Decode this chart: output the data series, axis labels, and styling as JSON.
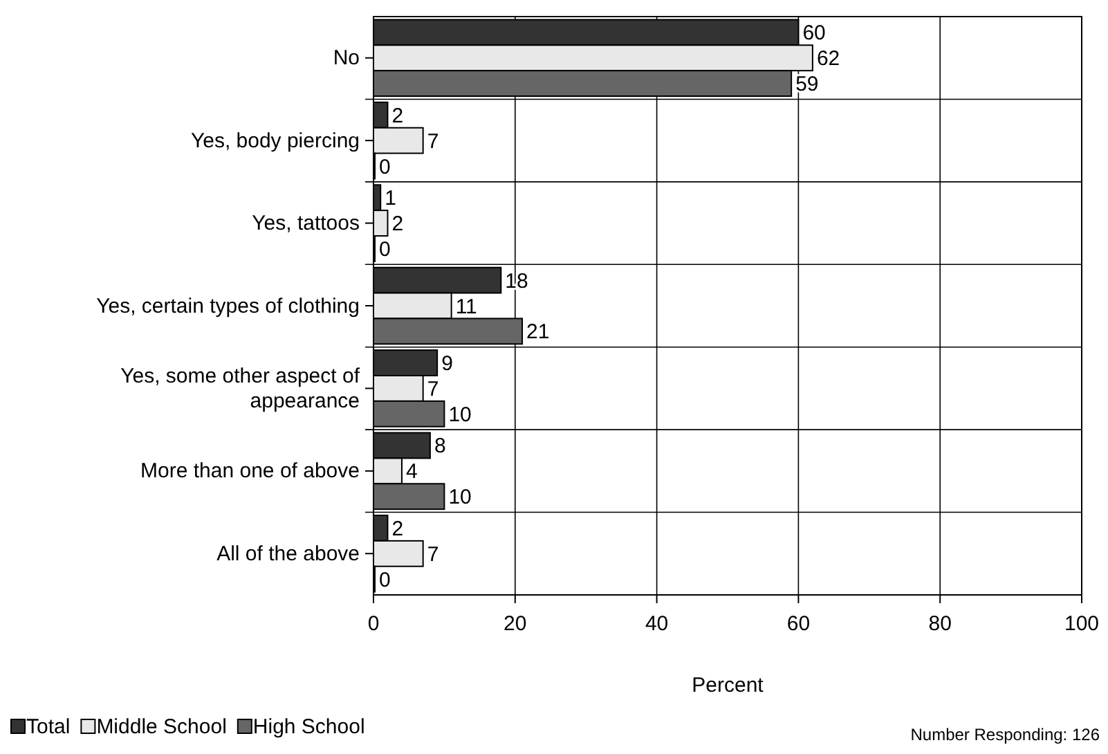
{
  "chart_data": {
    "type": "bar",
    "orientation": "horizontal",
    "xlabel": "Percent",
    "categories": [
      "No",
      "Yes, body piercing",
      "Yes, tattoos",
      "Yes, certain types of clothing",
      "Yes, some other aspect of appearance",
      "More than one of above",
      "All of the above"
    ],
    "series": [
      {
        "name": "Total",
        "color": "#333333",
        "values": [
          60,
          2,
          1,
          18,
          9,
          8,
          2
        ]
      },
      {
        "name": "Middle School",
        "color": "#e8e8e8",
        "values": [
          62,
          7,
          2,
          11,
          7,
          4,
          7
        ]
      },
      {
        "name": "High School",
        "color": "#666666",
        "values": [
          59,
          0,
          0,
          21,
          10,
          10,
          0
        ]
      }
    ],
    "xlim": [
      0,
      100
    ],
    "xticks": [
      0,
      20,
      40,
      60,
      80,
      100
    ],
    "grid": "x",
    "legend": "bottom left",
    "data_labels": true,
    "annotations": [
      "Number Responding: 126"
    ]
  }
}
